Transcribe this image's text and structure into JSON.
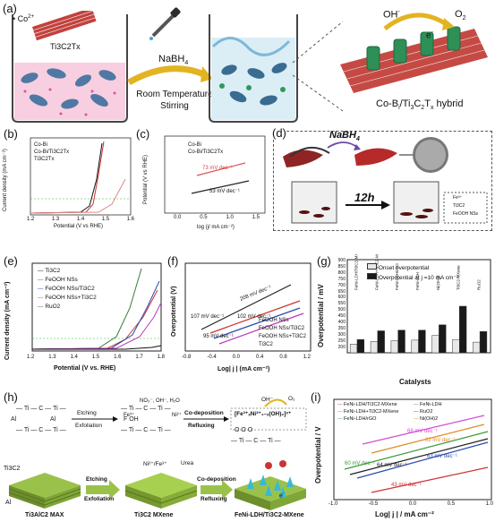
{
  "panels": {
    "a": {
      "label": "(a)",
      "co_ion": "Co",
      "co_charge": "2+",
      "ti3c2tx": "Ti3C2Tx",
      "nabh4": "NaBH",
      "nabh4_sub": "4",
      "arrow_text_1": "Room Temperature",
      "arrow_text_2": "Stirring",
      "oh": "OH",
      "o2": "O",
      "o2_sub": "2",
      "electron": "e",
      "hybrid_label": "Co-B",
      "hybrid_label_rest": "/Ti",
      "hybrid_label_tail": "C",
      "hybrid_label_end": "T",
      "hybrid_word": "hybrid"
    },
    "b": {
      "label": "(b)",
      "ylabel": "Current density (mA cm⁻²)",
      "xlabel": "Potential (V vs RHE)",
      "legend": [
        "Co-Bi",
        "Co-Bi/Ti3C2Tx",
        "Ti3C2Tx"
      ],
      "xticks": [
        "1.2",
        "1.3",
        "1.4",
        "1.5",
        "1.6"
      ],
      "yticks": [
        "0",
        "20",
        "40",
        "60",
        "80",
        "100"
      ]
    },
    "c": {
      "label": "(c)",
      "ylabel": "Potential (V vs RHE)",
      "xlabel": "log (j/ mA cm⁻²)",
      "legend": [
        "Co-Bi",
        "Co-Bi/Ti3C2Tx"
      ],
      "annot1": "73 mV dec⁻¹",
      "annot2": "53 mV dec⁻¹",
      "xticks": [
        "0.0",
        "0.5",
        "1.0",
        "1.5"
      ],
      "yticks": [
        "1.40",
        "1.45",
        "1.50",
        "1.55",
        "1.60",
        "1.65"
      ]
    },
    "d": {
      "label": "(d)",
      "nabh4": "NaBH",
      "nabh4_sub": "4",
      "time": "12h",
      "legend": [
        "Fe³⁺",
        "Ti3C2",
        "FeOOH NSs"
      ]
    },
    "e": {
      "label": "(e)",
      "ylabel": "Current density (mA cm⁻²)",
      "xlabel": "Potential (V vs. RHE)",
      "legend": [
        "Ti3C2",
        "FeOOH NSs",
        "FeOOH NSs/Ti3C2",
        "FeOOH NSs+Ti3C2",
        "RuO2"
      ],
      "xticks": [
        "1.2",
        "1.3",
        "1.4",
        "1.5",
        "1.6",
        "1.7",
        "1.8"
      ],
      "yticks": [
        "0",
        "10",
        "20",
        "30",
        "40",
        "50",
        "60",
        "70"
      ]
    },
    "f": {
      "label": "(f)",
      "ylabel": "Overpotential (V)",
      "xlabel": "Log| j | (mA cm⁻²)",
      "annot": [
        "208 mV dec⁻¹",
        "107 mV dec⁻¹",
        "102 mV dec⁻¹",
        "95 mV dec⁻¹"
      ],
      "legend": [
        "FeOOH NSs",
        "FeOOH NSs/Ti3C2",
        "FeOOH NSs+Ti3C2",
        "Ti3C2"
      ],
      "xticks": [
        "-0.8",
        "-0.4",
        "0.0",
        "0.4",
        "0.8",
        "1.2"
      ]
    },
    "g": {
      "label": "(g)",
      "ylabel": "Overpotential / mV",
      "xlabel": "Catalysts",
      "legend": [
        "Onset overpotential",
        "Overpotential at j =10 mA cm⁻²"
      ],
      "categories": [
        "FeNi-LDH/Ti3C2-MXene",
        "FeNi-LDH+Ti3C2-MXene",
        "FeNi-LDH/rGO",
        "FeNi-LDH",
        "Ni(OH)2",
        "Ti3C2-MXene",
        "RuO2"
      ],
      "yticks": [
        "200",
        "250",
        "300",
        "350",
        "400",
        "450",
        "500",
        "550",
        "600",
        "650",
        "700",
        "750",
        "800",
        "850",
        "900"
      ]
    },
    "h": {
      "label": "(h)",
      "etching1": "Etching",
      "exfol1": "Exfoliation",
      "codep1": "Co-deposition",
      "reflux1": "Refluxing",
      "ions": "NO₃⁻, OH⁻, H₂O",
      "fe3": "Fe³⁺",
      "ni2": "Ni²⁺",
      "formula": "[Fe³⁺ₓNi²⁺₁₋ₓ(OH)₂]ˣ⁺",
      "oh": "OH⁻",
      "o2": "O₂",
      "etching2": "Etching",
      "exfol2": "Exfoliation",
      "codep2": "Co-deposition",
      "reflux2": "Refluxing",
      "ti3c2": "Ti3C2",
      "al": "Al",
      "nife": "Ni²⁺/Fe³⁺",
      "urea": "Urea",
      "max": "Ti3AlC2 MAX",
      "mxene": "Ti3C2 MXene",
      "hybrid": "FeNi-LDH/Ti3C2-MXene",
      "electron": "e"
    },
    "i": {
      "label": "(i)",
      "ylabel": "Overpotential / V",
      "xlabel": "Log| j | / mA cm⁻²",
      "legend": [
        "FeNi-LDH/Ti3C2-MXene",
        "FeNi-LDH+Ti3C2-MXene",
        "FeNi-LDH/rGO",
        "FeNi-LDH",
        "RuO2",
        "Ni(OH)2"
      ],
      "annot": [
        "68 mV dec⁻¹",
        "62 mV dec⁻¹",
        "60 mV dec⁻¹",
        "64 mV dec⁻¹",
        "63 mV dec⁻¹",
        "43 mV dec⁻¹"
      ],
      "xticks": [
        "-1.0",
        "-0.5",
        "0.0",
        "0.5",
        "1.0"
      ]
    }
  },
  "chart_data": [
    {
      "panel": "g",
      "type": "bar",
      "categories": [
        "FeNi-LDH/Ti3C2-MXene",
        "FeNi-LDH+Ti3C2-MXene",
        "FeNi-LDH/rGO",
        "FeNi-LDH",
        "Ni(OH)2",
        "Ti3C2-MXene",
        "RuO2"
      ],
      "series": [
        {
          "name": "Onset overpotential",
          "values": [
            265,
            285,
            290,
            295,
            330,
            300,
            280
          ]
        },
        {
          "name": "Overpotential at j =10 mA cm⁻²",
          "values": [
            300,
            365,
            370,
            370,
            410,
            550,
            360
          ]
        }
      ],
      "ylim": [
        200,
        900
      ],
      "colors": [
        "#e8e8e8",
        "#1a1a1a"
      ]
    }
  ]
}
